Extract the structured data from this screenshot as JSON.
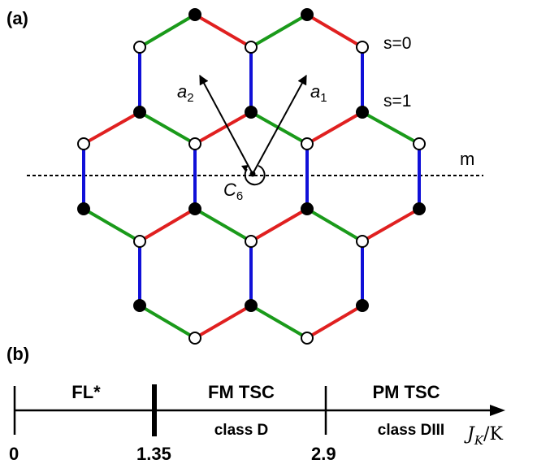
{
  "panel_a": {
    "label": "(a)",
    "sublattice_labels": {
      "s0": "s=0",
      "s1": "s=1"
    },
    "mirror_label": "m",
    "vector_a1": {
      "base": "a",
      "sub": "1"
    },
    "vector_a2": {
      "base": "a",
      "sub": "2"
    },
    "rotation": {
      "base": "C",
      "sub": "6"
    },
    "bond_colors": {
      "x": "#e02020",
      "y": "#1a9a1a",
      "z": "#1010d8"
    }
  },
  "panel_b": {
    "label": "(b)",
    "axis": {
      "base": "J",
      "sub": "K",
      "rest": "/K"
    },
    "phases": [
      {
        "name": "FL*",
        "class_label": ""
      },
      {
        "name": "FM TSC",
        "class_label": "class D"
      },
      {
        "name": "PM TSC",
        "class_label": "class DIII"
      }
    ],
    "ticks": [
      "0",
      "1.35",
      "2.9"
    ]
  }
}
